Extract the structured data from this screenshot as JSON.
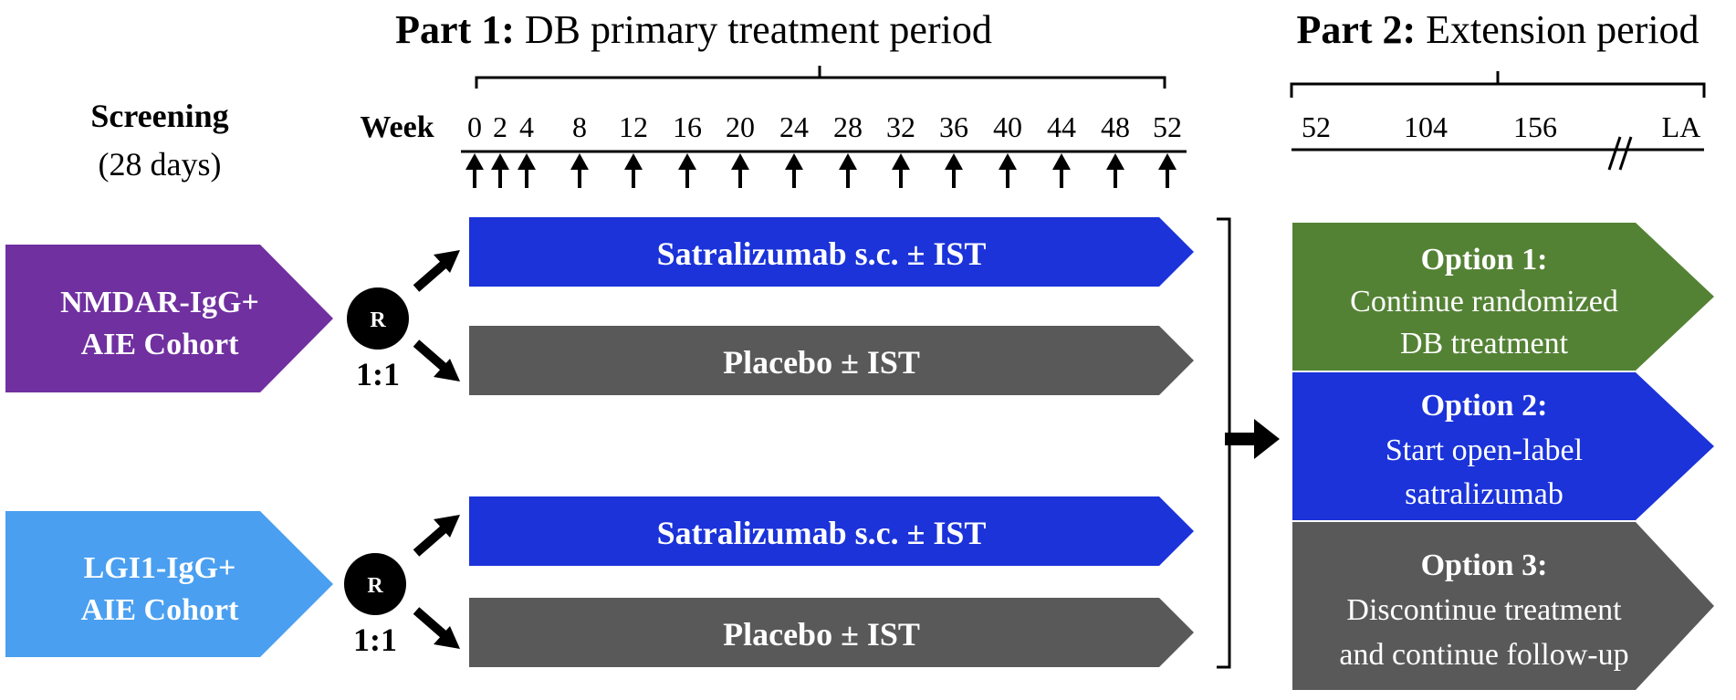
{
  "part1": {
    "label_bold": "Part 1:",
    "label_rest": " DB primary treatment period"
  },
  "part2": {
    "label_bold": "Part 2:",
    "label_rest": " Extension period"
  },
  "screening": {
    "title": "Screening",
    "duration": "(28 days)"
  },
  "week_label": "Week",
  "weeks": [
    "0",
    "2",
    "4",
    "8",
    "12",
    "16",
    "20",
    "24",
    "28",
    "32",
    "36",
    "40",
    "44",
    "48",
    "52"
  ],
  "extension_ticks": [
    "52",
    "104",
    "156",
    "LA"
  ],
  "cohorts": [
    {
      "line1": "NMDAR-IgG+",
      "line2": "AIE Cohort",
      "color": "#7030a0",
      "randomization": {
        "symbol": "R",
        "ratio": "1:1"
      },
      "arms": [
        {
          "label": "Satralizumab s.c. ± IST",
          "color": "#1b33d9"
        },
        {
          "label": "Placebo ± IST",
          "color": "#595959"
        }
      ]
    },
    {
      "line1": "LGI1-IgG+",
      "line2": "AIE Cohort",
      "color": "#4a9ff0",
      "randomization": {
        "symbol": "R",
        "ratio": "1:1"
      },
      "arms": [
        {
          "label": "Satralizumab s.c. ± IST",
          "color": "#1b33d9"
        },
        {
          "label": "Placebo ± IST",
          "color": "#595959"
        }
      ]
    }
  ],
  "options": [
    {
      "title": "Option 1:",
      "line1": "Continue randomized",
      "line2": "DB treatment",
      "color": "#548235"
    },
    {
      "title": "Option 2:",
      "line1": "Start open-label",
      "line2": "satralizumab",
      "color": "#1b33d9"
    },
    {
      "title": "Option 3:",
      "line1": "Discontinue treatment",
      "line2": "and continue follow-up",
      "color": "#595959"
    }
  ]
}
